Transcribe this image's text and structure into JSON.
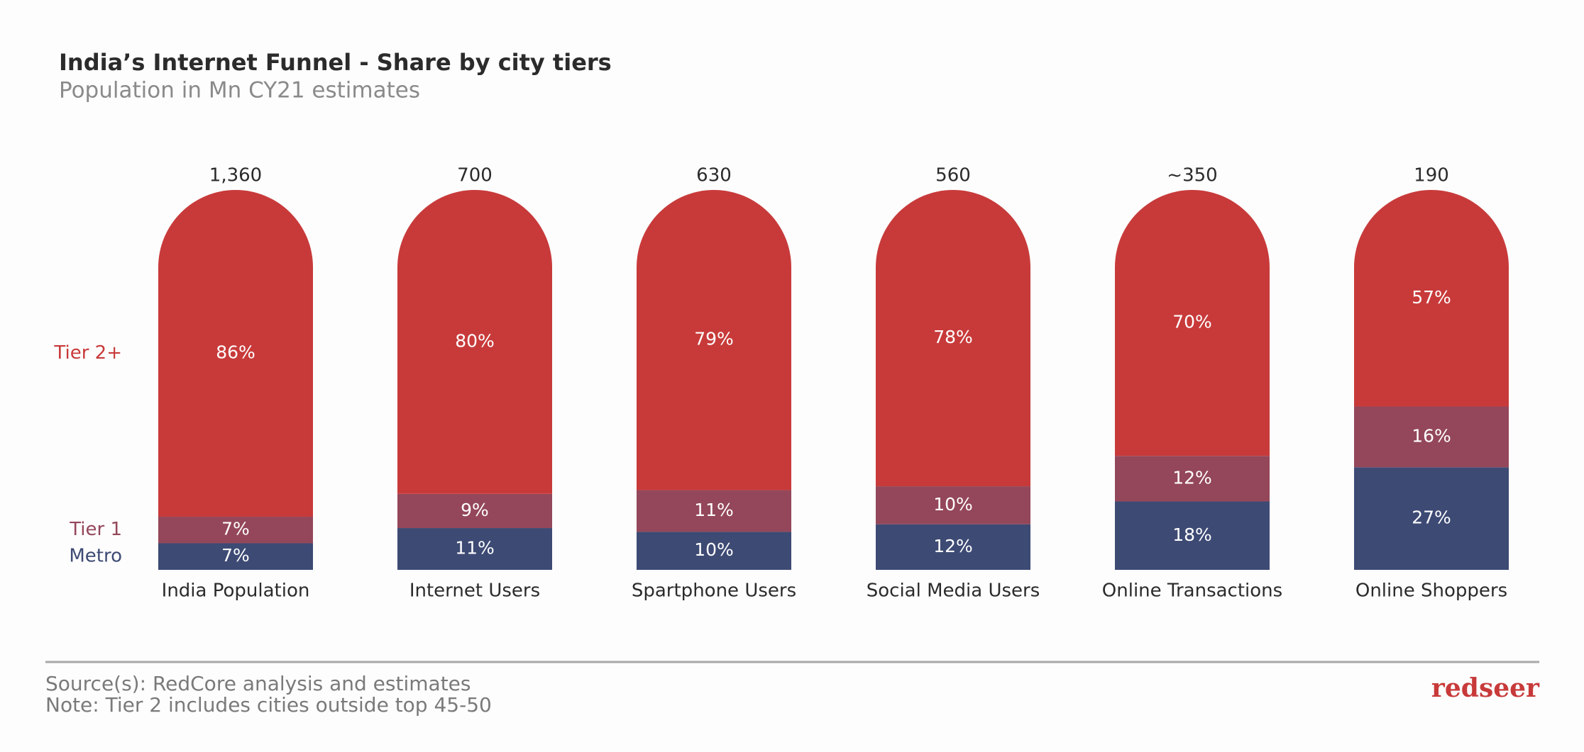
{
  "chart_data": {
    "type": "stacked-bar",
    "title": "India’s Internet Funnel - Share by city tiers",
    "subtitle": "Population in Mn CY21 estimates",
    "categories": [
      "India Population",
      "Internet Users",
      "Spartphone Users",
      "Social Media Users",
      "Online Transactions",
      "Online Shoppers"
    ],
    "totals": {
      "values": [
        1360,
        700,
        630,
        560,
        350,
        190
      ],
      "value_labels": [
        "1,360",
        "700",
        "630",
        "560",
        "~350",
        "190"
      ]
    },
    "ylim": [
      0,
      100
    ],
    "series": [
      {
        "name": "Metro",
        "color": "#3d4a74",
        "values": [
          7,
          11,
          10,
          12,
          18,
          27
        ],
        "value_labels": [
          "7%",
          "11%",
          "10%",
          "12%",
          "18%",
          "27%"
        ]
      },
      {
        "name": "Tier 1",
        "color": "#94475a",
        "values": [
          7,
          9,
          11,
          10,
          12,
          16
        ],
        "value_labels": [
          "7%",
          "9%",
          "11%",
          "10%",
          "12%",
          "16%"
        ]
      },
      {
        "name": "Tier 2+",
        "color": "#c83a3a",
        "values": [
          86,
          80,
          79,
          78,
          70,
          57
        ],
        "value_labels": [
          "86%",
          "80%",
          "79%",
          "78%",
          "70%",
          "57%"
        ]
      }
    ],
    "source": "Source(s): RedCore analysis and estimates",
    "note": "Note: Tier 2 includes cities outside top 45-50",
    "brand": "redseer"
  }
}
